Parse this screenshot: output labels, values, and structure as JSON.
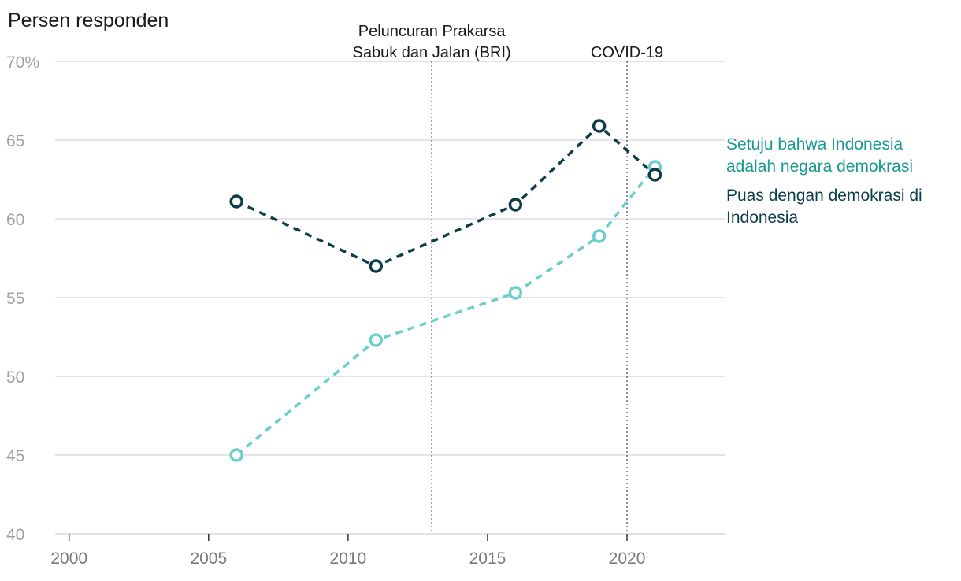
{
  "chart_data": {
    "type": "line",
    "ylabel": "Persen responden",
    "xlim": [
      1999.5,
      2023.5
    ],
    "ylim": [
      40,
      70
    ],
    "x_ticks": [
      2000,
      2005,
      2010,
      2015,
      2020
    ],
    "y_ticks": [
      40,
      45,
      50,
      55,
      60,
      65,
      70
    ],
    "y_tick_labels": [
      "40",
      "45",
      "50",
      "55",
      "60",
      "65",
      "70%"
    ],
    "grid": true,
    "legend_position": "right",
    "annotations": [
      {
        "x": 2013,
        "label": [
          "Peluncuran Prakarsa",
          "Sabuk dan Jalan (BRI)"
        ]
      },
      {
        "x": 2020,
        "label": [
          "COVID-19"
        ]
      }
    ],
    "series": [
      {
        "name": "Setuju bahwa Indonesia adalah negara demokrasi",
        "legend_lines": [
          "Setuju bahwa Indonesia",
          "adalah negara demokrasi"
        ],
        "label_color": "#1a9a8e",
        "color": "#6ccfcb",
        "x": [
          2006,
          2011,
          2016,
          2019,
          2021
        ],
        "y": [
          45.0,
          52.3,
          55.3,
          58.9,
          63.3
        ]
      },
      {
        "name": "Puas dengan demokrasi di Indonesia",
        "legend_lines": [
          "Puas dengan demokrasi di",
          "Indonesia"
        ],
        "label_color": "#0d3d48",
        "color": "#0d3d48",
        "x": [
          2006,
          2011,
          2016,
          2019,
          2021
        ],
        "y": [
          61.1,
          57.0,
          60.9,
          65.9,
          62.8
        ]
      }
    ]
  }
}
